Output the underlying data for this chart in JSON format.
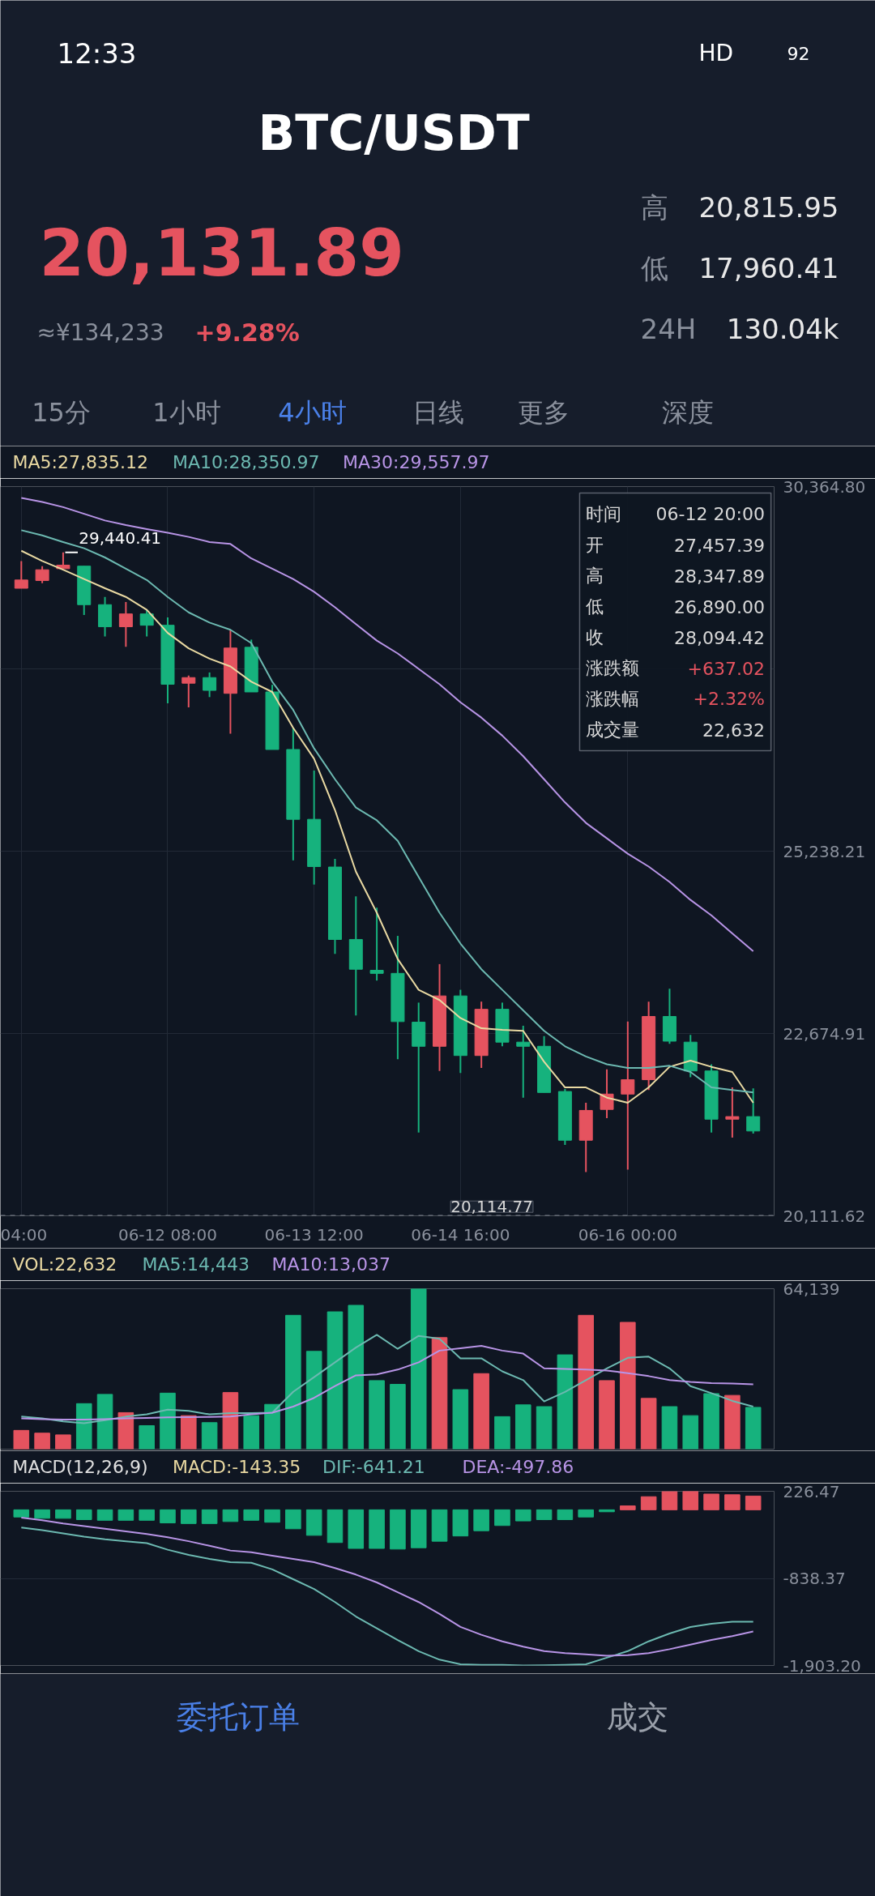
{
  "chart_data": [
    {
      "type": "other",
      "title": "BTC/USDT",
      "annotations": [
        "12:33",
        "HD",
        "92",
        "20,131.89",
        "≈¥134,233",
        "+9.28%",
        "高",
        "20,815.95",
        "低",
        "17,960.41",
        "24H",
        "130.04k",
        "15分",
        "1小时",
        "4小时",
        "日线",
        "更多",
        "深度"
      ]
    },
    {
      "type": "candlestick",
      "categories": [
        "04:00",
        null,
        null,
        null,
        null,
        null,
        null,
        "06-12 08:00",
        null,
        null,
        null,
        null,
        null,
        null,
        "06-13 12:00",
        null,
        null,
        null,
        null,
        null,
        null,
        "06-14 16:00",
        null,
        null,
        null,
        null,
        null,
        null,
        null,
        "06-16 00:00",
        null,
        null,
        null,
        null,
        null,
        null
      ],
      "ohlc": [
        [
          28935,
          29318,
          28935,
          29051
        ],
        [
          29044,
          29246,
          29007,
          29195
        ],
        [
          29210,
          29440.41,
          29210,
          29260
        ],
        [
          29246,
          29246,
          28560,
          28704
        ],
        [
          28704,
          28813,
          28257,
          28394
        ],
        [
          28394,
          28740,
          28112,
          28574
        ],
        [
          28574,
          28632,
          28257,
          28415
        ],
        [
          28415,
          28524,
          27318,
          27585
        ],
        [
          27600,
          27708,
          27260,
          27679
        ],
        [
          27679,
          27751,
          27405,
          27499
        ],
        [
          27457.39,
          28347.89,
          26890.0,
          28094.42
        ],
        [
          28105,
          28213,
          27477,
          27477
        ],
        [
          27477,
          27578,
          26668,
          26668
        ],
        [
          26668,
          26972,
          25109,
          25686
        ],
        [
          25686,
          26372,
          24769,
          25022
        ],
        [
          25015,
          25130,
          23794,
          23997
        ],
        [
          23997,
          24603,
          22928,
          23578
        ],
        [
          23563,
          24444,
          23419,
          23520
        ],
        [
          23520,
          24047,
          22314,
          22842
        ],
        [
          22834,
          23109,
          21282,
          22495
        ],
        [
          22495,
          23650,
          22148,
          23203
        ],
        [
          23203,
          23289,
          22119,
          22365
        ],
        [
          22365,
          23123,
          22192,
          23015
        ],
        [
          23015,
          23109,
          22495,
          22553
        ],
        [
          22553,
          22784,
          21773,
          22495
        ],
        [
          22495,
          22639,
          21845,
          21845
        ],
        [
          21859,
          21895,
          21109,
          21174
        ],
        [
          21174,
          21701,
          20726,
          21593
        ],
        [
          21607,
          22170,
          21484,
          21823
        ],
        [
          21823,
          22842,
          20762,
          22025
        ],
        [
          22025,
          23123,
          21881,
          22914
        ],
        [
          22914,
          23304,
          22531,
          22567
        ],
        [
          22553,
          22654,
          22061,
          22148
        ],
        [
          22148,
          22242,
          21282,
          21470
        ],
        [
          21470,
          21917,
          21210,
          21506
        ],
        [
          21506,
          21902,
          21268,
          21304
        ]
      ],
      "colors": [
        "#e5535f",
        "#e5535f",
        "#e5535f",
        "#16b27d",
        "#16b27d",
        "#e5535f",
        "#16b27d",
        "#16b27d",
        "#e5535f",
        "#16b27d",
        "#e5535f",
        "#16b27d",
        "#16b27d",
        "#16b27d",
        "#16b27d",
        "#16b27d",
        "#16b27d",
        "#16b27d",
        "#16b27d",
        "#16b27d",
        "#e5535f",
        "#16b27d",
        "#e5535f",
        "#16b27d",
        "#16b27d",
        "#16b27d",
        "#16b27d",
        "#e5535f",
        "#e5535f",
        "#e5535f",
        "#e5535f",
        "#16b27d",
        "#16b27d",
        "#16b27d",
        "#e5535f",
        "#16b27d"
      ],
      "series": [
        {
          "name": "MA5:27,835.12",
          "type": "line",
          "color": "#e9d9a2",
          "values": [
            29462,
            29318,
            29195,
            29065,
            28935,
            28813,
            28632,
            28307,
            28090,
            27946,
            27835.12,
            27621,
            27477,
            26972,
            26538,
            25816,
            24950,
            24372,
            23722,
            23289,
            23145,
            22892,
            22748,
            22726,
            22712,
            22278,
            21917,
            21917,
            21773,
            21701,
            21917,
            22206,
            22293,
            22206,
            22134,
            21701
          ]
        },
        {
          "name": "MA10:28,350.97",
          "type": "line",
          "color": "#6cb9b1",
          "values": [
            29751,
            29679,
            29585,
            29498,
            29368,
            29210,
            29051,
            28813,
            28596,
            28452,
            28350.97,
            28163,
            27621,
            27224,
            26683,
            26249,
            25852,
            25672,
            25383,
            24877,
            24372,
            23939,
            23578,
            23289,
            23000,
            22712,
            22495,
            22351,
            22242,
            22192,
            22192,
            22221,
            22134,
            21917,
            21881,
            21845
          ]
        },
        {
          "name": "MA30:29,557.97",
          "type": "line",
          "color": "#b894e6",
          "values": [
            30206,
            30148,
            30076,
            29982,
            29888,
            29823,
            29766,
            29715,
            29657,
            29585,
            29557.97,
            29354,
            29210,
            29065,
            28885,
            28668,
            28430,
            28199,
            28018,
            27802,
            27585,
            27332,
            27116,
            26863,
            26574,
            26249,
            25924,
            25636,
            25419,
            25202,
            25022,
            24805,
            24553,
            24336,
            24083,
            23831
          ]
        }
      ],
      "ylim": [
        20111.62,
        30364.8
      ],
      "yticks": [
        {
          "value": 30364.8,
          "label": "30,364.80"
        },
        {
          "value": 27801.51,
          "label": null
        },
        {
          "value": 25238.21,
          "label": "25,238.21"
        },
        {
          "value": 22674.91,
          "label": "22,674.91"
        },
        {
          "value": 20111.62,
          "label": "20,111.62"
        }
      ],
      "grid": true,
      "legend": "top left",
      "ref_lines": [
        {
          "axis": "y",
          "value": 20114.77,
          "label": "20,114.77",
          "line_style": "dashed"
        }
      ],
      "annotations": [
        "29,440.41",
        "时间",
        "06-12 20:00",
        "开",
        "27,457.39",
        "高",
        "28,347.89",
        "低",
        "26,890.00",
        "收",
        "28,094.42",
        "涨跌额",
        "+637.02",
        "涨跌幅",
        "+2.32%",
        "成交量",
        "22,632"
      ]
    },
    {
      "type": "bar",
      "categories": [
        null,
        null,
        null,
        null,
        null,
        null,
        null,
        null,
        null,
        null,
        null,
        null,
        null,
        null,
        null,
        null,
        null,
        null,
        null,
        null,
        null,
        null,
        null,
        null,
        null,
        null,
        null,
        null,
        null,
        null,
        null,
        null,
        null,
        null,
        null,
        null
      ],
      "series": [
        {
          "type": "bar",
          "colors": [
            "#e5535f",
            "#e5535f",
            "#e5535f",
            "#16b27d",
            "#16b27d",
            "#e5535f",
            "#16b27d",
            "#16b27d",
            "#e5535f",
            "#16b27d",
            "#e5535f",
            "#16b27d",
            "#16b27d",
            "#16b27d",
            "#16b27d",
            "#16b27d",
            "#16b27d",
            "#16b27d",
            "#16b27d",
            "#16b27d",
            "#e5535f",
            "#16b27d",
            "#e5535f",
            "#16b27d",
            "#16b27d",
            "#16b27d",
            "#16b27d",
            "#e5535f",
            "#e5535f",
            "#e5535f",
            "#e5535f",
            "#16b27d",
            "#16b27d",
            "#16b27d",
            "#e5535f",
            "#16b27d"
          ],
          "values": [
            7500,
            6400,
            5700,
            18200,
            21900,
            14600,
            9400,
            22400,
            13400,
            10600,
            22632,
            13400,
            17900,
            53500,
            39100,
            54900,
            57500,
            27400,
            25900,
            64139,
            44600,
            23800,
            30200,
            13000,
            17700,
            17000,
            37700,
            53500,
            27400,
            50700,
            20300,
            17000,
            13400,
            22200,
            21500,
            16700
          ]
        },
        {
          "name": "MA5:14,443",
          "type": "line",
          "color": "#6cb9b1",
          "values": [
            13000,
            12300,
            11100,
            10400,
            11600,
            13000,
            13900,
            15800,
            15300,
            13900,
            14443,
            14400,
            14600,
            22900,
            28800,
            34700,
            40600,
            45700,
            40100,
            45300,
            44100,
            36300,
            36300,
            31100,
            27600,
            19100,
            22900,
            27600,
            32300,
            36500,
            37000,
            32300,
            25200,
            22400,
            19300,
            17000
          ]
        },
        {
          "name": "MA10:13,037",
          "type": "line",
          "color": "#b894e6",
          "values": [
            12300,
            12000,
            11800,
            11800,
            12000,
            12300,
            12500,
            12700,
            12800,
            12900,
            13037,
            13900,
            14600,
            17000,
            20500,
            25200,
            29500,
            29900,
            31800,
            34700,
            39400,
            40300,
            41300,
            39400,
            38200,
            32300,
            32100,
            31800,
            31400,
            30400,
            29200,
            27600,
            26900,
            26400,
            26200,
            25900
          ]
        }
      ],
      "annotations": [
        "VOL:22,632"
      ],
      "ylim": [
        0,
        64139
      ],
      "yticks": [
        {
          "value": 64139,
          "label": "64,139"
        }
      ],
      "legend": "top left",
      "tick_labels": "y"
    },
    {
      "type": "bar",
      "title": "MACD(12,26,9)",
      "categories": [
        null,
        null,
        null,
        null,
        null,
        null,
        null,
        null,
        null,
        null,
        null,
        null,
        null,
        null,
        null,
        null,
        null,
        null,
        null,
        null,
        null,
        null,
        null,
        null,
        null,
        null,
        null,
        null,
        null,
        null,
        null,
        null,
        null,
        null,
        null,
        null
      ],
      "series": [
        {
          "name": "MACD:-143.35",
          "type": "bar",
          "colors": [
            "#16b27d",
            "#16b27d",
            "#16b27d",
            "#16b27d",
            "#16b27d",
            "#16b27d",
            "#16b27d",
            "#16b27d",
            "#16b27d",
            "#16b27d",
            "#16b27d",
            "#16b27d",
            "#16b27d",
            "#16b27d",
            "#16b27d",
            "#16b27d",
            "#16b27d",
            "#16b27d",
            "#16b27d",
            "#16b27d",
            "#16b27d",
            "#16b27d",
            "#16b27d",
            "#16b27d",
            "#16b27d",
            "#16b27d",
            "#16b27d",
            "#16b27d",
            "#16b27d",
            "#e5535f",
            "#e5535f",
            "#e5535f",
            "#e5535f",
            "#e5535f",
            "#e5535f",
            "#e5535f"
          ],
          "values": [
            -88,
            -104,
            -104,
            -120,
            -128,
            -128,
            -128,
            -160,
            -168,
            -168,
            -143.35,
            -128,
            -152,
            -232,
            -312,
            -400,
            -472,
            -472,
            -480,
            -464,
            -384,
            -320,
            -256,
            -192,
            -136,
            -120,
            -120,
            -88,
            -24,
            48,
            160,
            224,
            226.47,
            192,
            184,
            168
          ]
        },
        {
          "name": "DIF:-641.21",
          "type": "line",
          "color": "#6cb9b1",
          "values": [
            -216,
            -248,
            -288,
            -328,
            -360,
            -384,
            -408,
            -488,
            -552,
            -600,
            -641.21,
            -648,
            -728,
            -848,
            -968,
            -1128,
            -1304,
            -1448,
            -1592,
            -1728,
            -1832,
            -1888,
            -1896,
            -1896,
            -1903.2,
            -1900,
            -1896,
            -1888,
            -1808,
            -1728,
            -1608,
            -1512,
            -1432,
            -1392,
            -1368,
            -1368
          ]
        },
        {
          "name": "DEA:-497.86",
          "type": "line",
          "color": "#b894e6",
          "values": [
            -96,
            -128,
            -168,
            -200,
            -232,
            -264,
            -296,
            -336,
            -384,
            -440,
            -497.86,
            -520,
            -560,
            -600,
            -640,
            -712,
            -792,
            -888,
            -1008,
            -1128,
            -1272,
            -1432,
            -1528,
            -1608,
            -1672,
            -1728,
            -1752,
            -1768,
            -1784,
            -1776,
            -1752,
            -1704,
            -1648,
            -1592,
            -1544,
            -1488
          ]
        }
      ],
      "ylim": [
        -1903.2,
        226.47
      ],
      "yticks": [
        {
          "value": 226.47,
          "label": "226.47"
        },
        {
          "value": -838.37,
          "label": "-838.37"
        },
        {
          "value": -1903.2,
          "label": "-1,903.20"
        }
      ],
      "grid": "y",
      "legend": "top left",
      "tick_labels": "y"
    },
    {
      "type": "other",
      "annotations": [
        "委托订单",
        "成交"
      ]
    }
  ]
}
